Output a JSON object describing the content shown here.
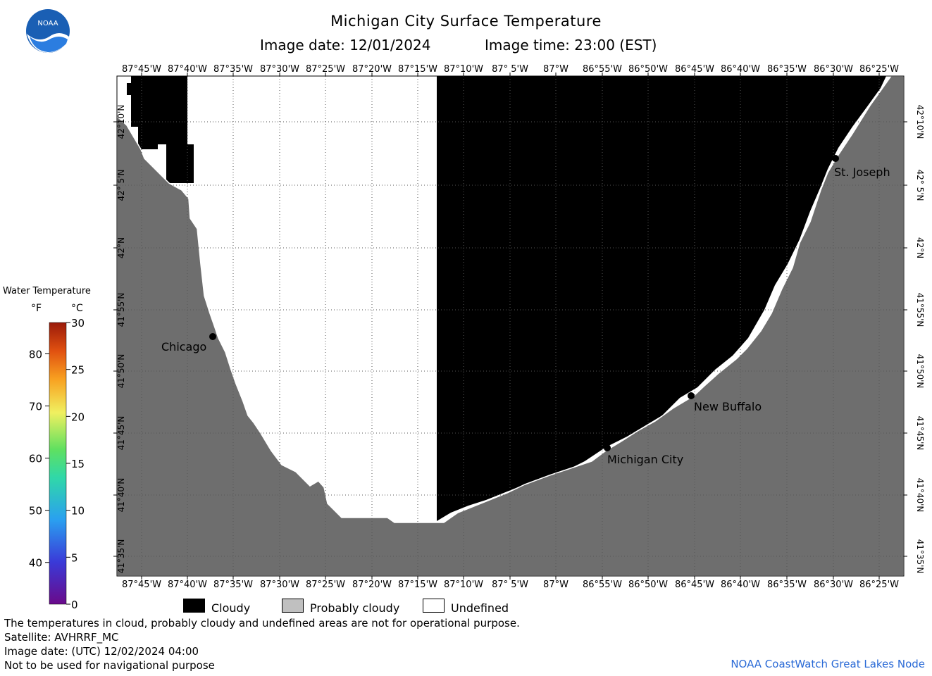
{
  "header": {
    "title": "Michigan City Surface Temperature",
    "image_date": "Image date: 12/01/2024",
    "image_time": "Image time: 23:00 (EST)",
    "logo_text": "NOAA"
  },
  "map": {
    "longitude_labels": [
      "87°45'W",
      "87°40'W",
      "87°35'W",
      "87°30'W",
      "87°25'W",
      "87°20'W",
      "87°15'W",
      "87°10'W",
      "87° 5'W",
      "87°W",
      "86°55'W",
      "86°50'W",
      "86°45'W",
      "86°40'W",
      "86°35'W",
      "86°30'W",
      "86°25'W"
    ],
    "latitude_labels": [
      "42°10'N",
      "42° 5'N",
      "42°N",
      "41°55'N",
      "41°50'N",
      "41°45'N",
      "41°40'N",
      "41°35'N"
    ],
    "cities": [
      {
        "name": "Chicago"
      },
      {
        "name": "Michigan City"
      },
      {
        "name": "New Buffalo"
      },
      {
        "name": "St. Joseph"
      }
    ],
    "colors": {
      "land": "#6e6e6e",
      "cloudy": "#000000",
      "undefined": "#ffffff",
      "grid": "#555555"
    }
  },
  "colorbar": {
    "title": "Water Temperature",
    "unit_f": "°F",
    "unit_c": "°C",
    "f_ticks": [
      "40",
      "50",
      "60",
      "70",
      "80"
    ],
    "c_ticks": [
      "0",
      "5",
      "10",
      "15",
      "20",
      "25",
      "30"
    ]
  },
  "key": {
    "cloudy": "Cloudy",
    "probably_cloudy": "Probably cloudy",
    "undefined": "Undefined",
    "colors": {
      "cloudy": "#000000",
      "probably_cloudy": "#c0c0c0",
      "undefined": "#ffffff"
    }
  },
  "footer": {
    "line1": "The temperatures in cloud, probably cloudy and undefined areas are not for operational purpose.",
    "line2": "Satellite: AVHRRF_MC",
    "line3": "Image date: (UTC) 12/02/2024  04:00",
    "line4": "Not to be used for navigational purpose",
    "credit": "NOAA CoastWatch Great Lakes Node"
  }
}
